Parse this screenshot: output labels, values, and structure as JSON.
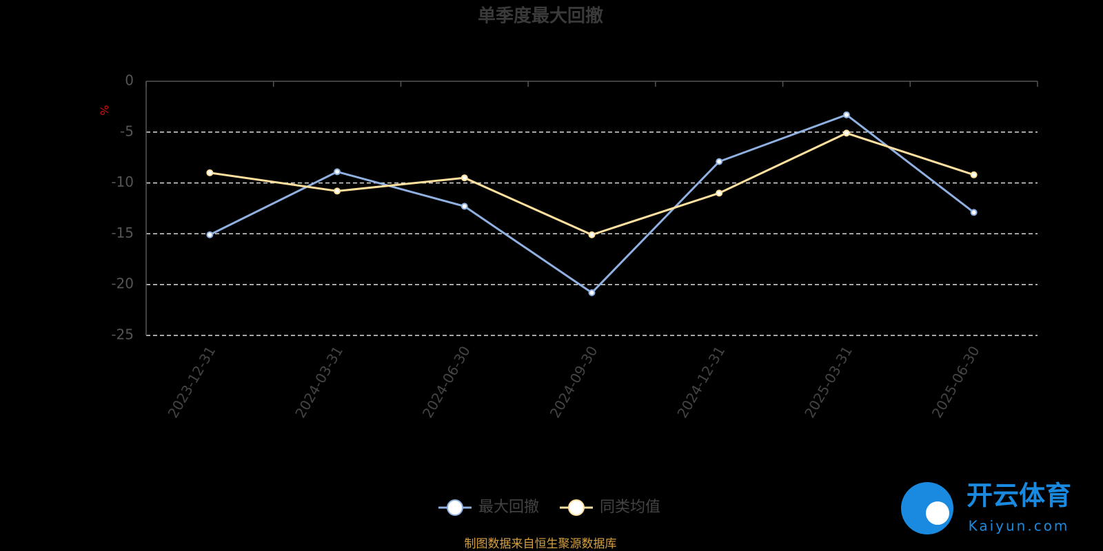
{
  "chart_data": {
    "type": "line",
    "title": "单季度最大回撤",
    "y_label": "%",
    "categories": [
      "2023-12-31",
      "2024-03-31",
      "2024-06-30",
      "2024-09-30",
      "2024-12-31",
      "2025-03-31",
      "2025-06-30"
    ],
    "series": [
      {
        "name": "最大回撤",
        "color": "#8fb0e0",
        "values": [
          -15.1,
          -8.9,
          -12.3,
          -20.8,
          -7.9,
          -3.3,
          -12.9
        ]
      },
      {
        "name": "同类均值",
        "color": "#ffe09e",
        "values": [
          -9.0,
          -10.8,
          -9.5,
          -15.1,
          -11.0,
          -5.1,
          -9.2
        ]
      }
    ],
    "ylim": [
      -25,
      0
    ],
    "yticks": [
      0,
      -5,
      -10,
      -15,
      -20,
      -25
    ],
    "grid": true,
    "legend": "bottom",
    "source": "制图数据来自恒生聚源数据库",
    "logo_text": "开云体育",
    "logo_subtext": "Kaiyun.com"
  }
}
